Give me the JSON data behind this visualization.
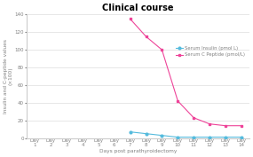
{
  "title": "Clinical course",
  "xlabel": "Days post parathyroidectomy",
  "ylabel": "Insulin and C-peptide values\n(×100)",
  "day_nums": [
    1,
    2,
    3,
    4,
    5,
    6,
    7,
    8,
    9,
    10,
    11,
    12,
    13,
    14
  ],
  "insulin": [
    null,
    null,
    null,
    null,
    null,
    null,
    7,
    5,
    3,
    1,
    1,
    1,
    1,
    1
  ],
  "c_peptide": [
    null,
    null,
    null,
    null,
    null,
    null,
    135,
    115,
    100,
    42,
    23,
    16,
    14,
    14
  ],
  "insulin_color": "#55bbdd",
  "c_peptide_color": "#ee4499",
  "ylim": [
    0,
    140
  ],
  "yticks": [
    0,
    20,
    40,
    60,
    80,
    100,
    120,
    140
  ],
  "legend_insulin": "Serum Insulin (pmol L)",
  "legend_cpeptide": "Serum C Peptide (pmol/L)",
  "bg_color": "#ffffff",
  "grid_color": "#dddddd",
  "title_fontsize": 7,
  "axis_label_fontsize": 4.2,
  "tick_fontsize": 4.0,
  "legend_fontsize": 3.8
}
